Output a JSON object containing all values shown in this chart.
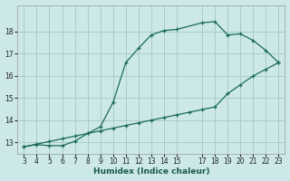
{
  "xlabel": "Humidex (Indice chaleur)",
  "ylabel": "",
  "bg_color": "#cce8e8",
  "grid_color": "#aacccc",
  "line_color": "#1a6b5a",
  "marker_color": "#1a6b5a",
  "curve1_x": [
    3,
    4,
    5,
    6,
    7,
    8,
    9,
    10,
    11,
    12,
    13,
    14,
    15,
    17,
    18,
    19,
    20,
    21,
    22,
    23
  ],
  "curve1_y": [
    12.8,
    12.9,
    12.85,
    12.85,
    13.05,
    13.4,
    13.7,
    14.8,
    16.6,
    17.25,
    17.85,
    18.05,
    18.1,
    18.4,
    18.45,
    17.85,
    17.9,
    17.6,
    17.15,
    16.6
  ],
  "curve2_x": [
    3,
    4,
    5,
    6,
    7,
    8,
    9,
    10,
    11,
    12,
    13,
    14,
    15,
    16,
    17,
    18,
    19,
    20,
    21,
    22,
    23
  ],
  "curve2_y": [
    12.8,
    12.92,
    13.04,
    13.16,
    13.28,
    13.4,
    13.52,
    13.64,
    13.76,
    13.88,
    14.0,
    14.12,
    14.24,
    14.36,
    14.48,
    14.6,
    15.2,
    15.6,
    16.0,
    16.3,
    16.6
  ],
  "xlim": [
    2.5,
    23.5
  ],
  "ylim": [
    12.5,
    19.2
  ],
  "yticks": [
    13,
    14,
    15,
    16,
    17,
    18
  ],
  "xticks": [
    3,
    4,
    5,
    6,
    7,
    8,
    9,
    10,
    11,
    12,
    13,
    14,
    15,
    17,
    18,
    19,
    20,
    21,
    22,
    23
  ]
}
